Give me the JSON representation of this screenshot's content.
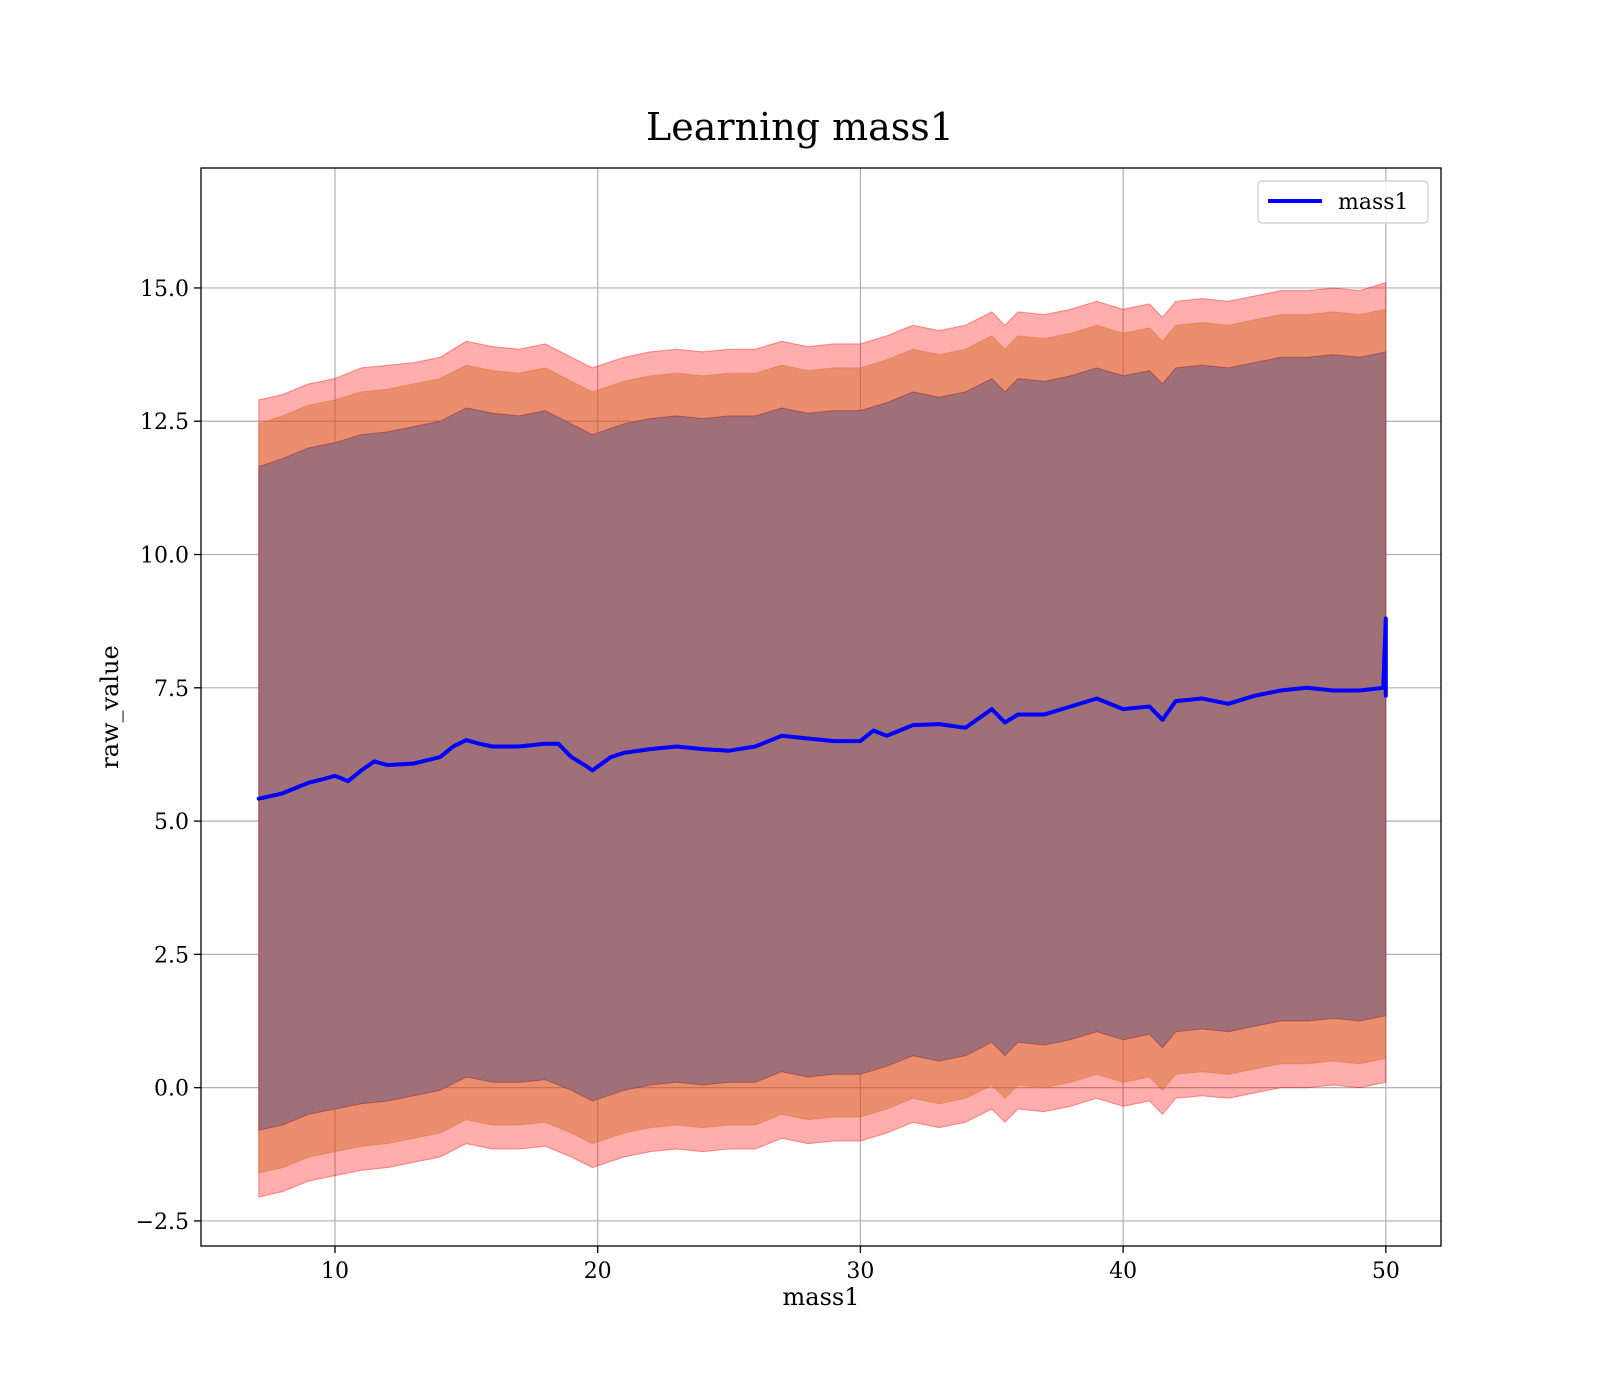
{
  "chart_data": {
    "type": "line",
    "title": "Learning mass1",
    "xlabel": "mass1",
    "ylabel": "raw_value",
    "xlim": [
      4.9,
      52.1
    ],
    "ylim": [
      -2.97,
      17.25
    ],
    "xticks": [
      10,
      20,
      30,
      40,
      50
    ],
    "xtick_labels": [
      "10",
      "20",
      "30",
      "40",
      "50"
    ],
    "yticks": [
      -2.5,
      0.0,
      2.5,
      5.0,
      7.5,
      10.0,
      12.5,
      15.0
    ],
    "ytick_labels": [
      "−2.5",
      "0.0",
      "2.5",
      "5.0",
      "7.5",
      "10.0",
      "12.5",
      "15.0"
    ],
    "grid": true,
    "legend": {
      "position": "top-right",
      "entries": [
        "mass1"
      ]
    },
    "colors": {
      "line": "#0000ff",
      "band_outer": "#ff0000",
      "band_middle": "#d2691e",
      "band_inner": "#800020",
      "band_composite_inner": "#a07078"
    },
    "series": [
      {
        "name": "mass1",
        "x": [
          7.1,
          8.0,
          9.0,
          9.5,
          10.0,
          10.5,
          11.0,
          11.5,
          12.0,
          13.0,
          14.0,
          14.5,
          15.0,
          15.5,
          16.0,
          17.0,
          18.0,
          18.5,
          19.0,
          19.5,
          19.8,
          20.5,
          21.0,
          22.0,
          23.0,
          24.0,
          25.0,
          26.0,
          27.0,
          28.0,
          29.0,
          30.0,
          30.5,
          31.0,
          32.0,
          33.0,
          34.0,
          35.0,
          35.5,
          36.0,
          37.0,
          38.0,
          39.0,
          40.0,
          41.0,
          41.5,
          42.0,
          43.0,
          44.0,
          45.0,
          46.0,
          47.0,
          48.0,
          49.0,
          49.9,
          50.0,
          50.0
        ],
        "values": [
          5.42,
          5.52,
          5.72,
          5.78,
          5.85,
          5.75,
          5.95,
          6.12,
          6.05,
          6.08,
          6.2,
          6.4,
          6.52,
          6.45,
          6.4,
          6.4,
          6.45,
          6.45,
          6.2,
          6.05,
          5.95,
          6.2,
          6.28,
          6.35,
          6.4,
          6.35,
          6.32,
          6.4,
          6.6,
          6.55,
          6.5,
          6.5,
          6.7,
          6.6,
          6.8,
          6.82,
          6.75,
          7.1,
          6.85,
          7.0,
          7.0,
          7.15,
          7.3,
          7.1,
          7.15,
          6.9,
          7.25,
          7.3,
          7.2,
          7.35,
          7.45,
          7.5,
          7.45,
          7.45,
          7.5,
          8.8,
          7.35
        ]
      },
      {
        "name": "",
        "kind": "band",
        "x": [
          7.1,
          8.0,
          9.0,
          10.0,
          11.0,
          12.0,
          13.0,
          14.0,
          15.0,
          16.0,
          17.0,
          18.0,
          19.0,
          19.8,
          21.0,
          22.0,
          23.0,
          24.0,
          25.0,
          26.0,
          27.0,
          28.0,
          29.0,
          30.0,
          31.0,
          32.0,
          33.0,
          34.0,
          35.0,
          35.5,
          36.0,
          37.0,
          38.0,
          39.0,
          40.0,
          41.0,
          41.5,
          42.0,
          43.0,
          44.0,
          45.0,
          46.0,
          47.0,
          48.0,
          49.0,
          50.0
        ],
        "upper_outer": [
          12.9,
          13.0,
          13.2,
          13.3,
          13.5,
          13.55,
          13.6,
          13.7,
          14.0,
          13.9,
          13.85,
          13.95,
          13.7,
          13.5,
          13.7,
          13.8,
          13.85,
          13.8,
          13.85,
          13.85,
          14.0,
          13.9,
          13.95,
          13.95,
          14.1,
          14.3,
          14.2,
          14.3,
          14.55,
          14.3,
          14.55,
          14.5,
          14.6,
          14.75,
          14.6,
          14.7,
          14.45,
          14.75,
          14.8,
          14.75,
          14.85,
          14.95,
          14.95,
          15.0,
          14.95,
          15.1
        ],
        "upper_middle": [
          12.45,
          12.6,
          12.8,
          12.9,
          13.05,
          13.1,
          13.2,
          13.3,
          13.55,
          13.45,
          13.4,
          13.5,
          13.25,
          13.05,
          13.25,
          13.35,
          13.4,
          13.35,
          13.4,
          13.4,
          13.55,
          13.45,
          13.5,
          13.5,
          13.65,
          13.85,
          13.75,
          13.85,
          14.1,
          13.85,
          14.1,
          14.05,
          14.15,
          14.3,
          14.15,
          14.25,
          14.0,
          14.3,
          14.35,
          14.3,
          14.4,
          14.5,
          14.5,
          14.55,
          14.5,
          14.6
        ],
        "upper_inner": [
          11.65,
          11.8,
          12.0,
          12.1,
          12.25,
          12.3,
          12.4,
          12.5,
          12.75,
          12.65,
          12.6,
          12.7,
          12.45,
          12.25,
          12.45,
          12.55,
          12.6,
          12.55,
          12.6,
          12.6,
          12.75,
          12.65,
          12.7,
          12.7,
          12.85,
          13.05,
          12.95,
          13.05,
          13.3,
          13.05,
          13.3,
          13.25,
          13.35,
          13.5,
          13.35,
          13.45,
          13.2,
          13.5,
          13.55,
          13.5,
          13.6,
          13.7,
          13.7,
          13.75,
          13.7,
          13.8
        ],
        "lower_inner": [
          -0.8,
          -0.7,
          -0.5,
          -0.4,
          -0.3,
          -0.25,
          -0.15,
          -0.05,
          0.2,
          0.1,
          0.1,
          0.15,
          -0.05,
          -0.25,
          -0.05,
          0.05,
          0.1,
          0.05,
          0.1,
          0.1,
          0.3,
          0.2,
          0.25,
          0.25,
          0.4,
          0.6,
          0.5,
          0.6,
          0.85,
          0.6,
          0.85,
          0.8,
          0.9,
          1.05,
          0.9,
          1.0,
          0.75,
          1.05,
          1.1,
          1.05,
          1.15,
          1.25,
          1.25,
          1.3,
          1.25,
          1.35
        ],
        "lower_middle": [
          -1.6,
          -1.5,
          -1.3,
          -1.2,
          -1.1,
          -1.05,
          -0.95,
          -0.85,
          -0.6,
          -0.7,
          -0.7,
          -0.65,
          -0.85,
          -1.05,
          -0.85,
          -0.75,
          -0.7,
          -0.75,
          -0.7,
          -0.7,
          -0.5,
          -0.6,
          -0.55,
          -0.55,
          -0.4,
          -0.2,
          -0.3,
          -0.2,
          0.05,
          -0.2,
          0.05,
          0.0,
          0.1,
          0.25,
          0.1,
          0.2,
          -0.05,
          0.25,
          0.3,
          0.25,
          0.35,
          0.45,
          0.45,
          0.5,
          0.45,
          0.55
        ],
        "lower_outer": [
          -2.05,
          -1.95,
          -1.75,
          -1.65,
          -1.55,
          -1.5,
          -1.4,
          -1.3,
          -1.05,
          -1.15,
          -1.15,
          -1.1,
          -1.3,
          -1.5,
          -1.3,
          -1.2,
          -1.15,
          -1.2,
          -1.15,
          -1.15,
          -0.95,
          -1.05,
          -1.0,
          -1.0,
          -0.85,
          -0.65,
          -0.75,
          -0.65,
          -0.4,
          -0.65,
          -0.4,
          -0.45,
          -0.35,
          -0.2,
          -0.35,
          -0.25,
          -0.5,
          -0.2,
          -0.15,
          -0.2,
          -0.1,
          0.0,
          0.0,
          0.05,
          0.0,
          0.1
        ]
      }
    ]
  }
}
